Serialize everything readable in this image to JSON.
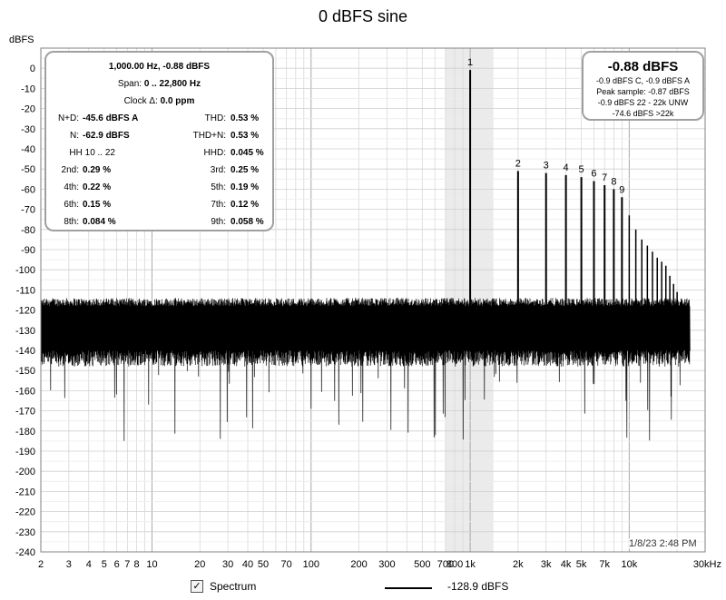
{
  "chart_data": {
    "type": "line",
    "title": "0 dBFS sine",
    "ylabel": "dBFS",
    "xlabel": "",
    "xscale": "log",
    "xlim": [
      2,
      30000
    ],
    "ylim": [
      -240,
      10
    ],
    "x_ticks": [
      {
        "v": 2,
        "label": "2"
      },
      {
        "v": 3,
        "label": "3"
      },
      {
        "v": 4,
        "label": "4"
      },
      {
        "v": 5,
        "label": "5"
      },
      {
        "v": 6,
        "label": "6"
      },
      {
        "v": 7,
        "label": "7"
      },
      {
        "v": 8,
        "label": "8"
      },
      {
        "v": 9,
        "label": ""
      },
      {
        "v": 10,
        "label": "10"
      },
      {
        "v": 20,
        "label": "20"
      },
      {
        "v": 30,
        "label": "30"
      },
      {
        "v": 40,
        "label": "40"
      },
      {
        "v": 50,
        "label": "50"
      },
      {
        "v": 70,
        "label": "70"
      },
      {
        "v": 100,
        "label": "100"
      },
      {
        "v": 200,
        "label": "200"
      },
      {
        "v": 300,
        "label": "300"
      },
      {
        "v": 500,
        "label": "500"
      },
      {
        "v": 700,
        "label": "700"
      },
      {
        "v": 800,
        "label": "800"
      },
      {
        "v": 1000,
        "label": "1k"
      },
      {
        "v": 2000,
        "label": "2k"
      },
      {
        "v": 3000,
        "label": "3k"
      },
      {
        "v": 4000,
        "label": "4k"
      },
      {
        "v": 5000,
        "label": "5k"
      },
      {
        "v": 7000,
        "label": "7k"
      },
      {
        "v": 10000,
        "label": "10k"
      },
      {
        "v": 30000,
        "label": "30kHz"
      }
    ],
    "y_ticks": [
      0,
      -10,
      -20,
      -30,
      -40,
      -50,
      -60,
      -70,
      -80,
      -90,
      -100,
      -110,
      -120,
      -130,
      -140,
      -150,
      -160,
      -170,
      -180,
      -190,
      -200,
      -210,
      -220,
      -230,
      -240
    ],
    "highlight_band": [
      700,
      1400
    ],
    "noise_floor": {
      "low": -140,
      "high": -118,
      "freq_start": 2,
      "freq_end": 24000
    },
    "harmonics": [
      {
        "label": "1",
        "freq": 1000,
        "level": -0.88
      },
      {
        "label": "2",
        "freq": 2000,
        "level": -51
      },
      {
        "label": "3",
        "freq": 3000,
        "level": -52
      },
      {
        "label": "4",
        "freq": 4000,
        "level": -53
      },
      {
        "label": "5",
        "freq": 5000,
        "level": -54
      },
      {
        "label": "6",
        "freq": 6000,
        "level": -56
      },
      {
        "label": "7",
        "freq": 7000,
        "level": -58
      },
      {
        "label": "8",
        "freq": 8000,
        "level": -60
      },
      {
        "label": "9",
        "freq": 9000,
        "level": -64
      }
    ],
    "extra_harmonics": [
      {
        "freq": 10000,
        "level": -73
      },
      {
        "freq": 11000,
        "level": -80
      },
      {
        "freq": 12000,
        "level": -85
      },
      {
        "freq": 13000,
        "level": -88
      },
      {
        "freq": 14000,
        "level": -91
      },
      {
        "freq": 15000,
        "level": -94
      },
      {
        "freq": 16000,
        "level": -96
      },
      {
        "freq": 17000,
        "level": -98
      },
      {
        "freq": 18000,
        "level": -103
      },
      {
        "freq": 19000,
        "level": -107
      },
      {
        "freq": 20000,
        "level": -111
      }
    ]
  },
  "stats": {
    "header": "1,000.00 Hz, -0.88 dBFS",
    "span_label": "Span:",
    "span_value": "0 .. 22,800 Hz",
    "clock_label": "Clock Δ:",
    "clock_value": "0.0 ppm",
    "nd_label": "N+D:",
    "nd_value": "-45.6 dBFS A",
    "thd_label": "THD:",
    "thd_value": "0.53 %",
    "n_label": "N:",
    "n_value": "-62.9 dBFS",
    "thdn_label": "THD+N:",
    "thdn_value": "0.53 %",
    "hh_label": "HH 10 .. 22",
    "hhd_label": "HHD:",
    "hhd_value": "0.045 %",
    "h2_label": "2nd:",
    "h2_value": "0.29 %",
    "h3_label": "3rd:",
    "h3_value": "0.25 %",
    "h4_label": "4th:",
    "h4_value": "0.22 %",
    "h5_label": "5th:",
    "h5_value": "0.19 %",
    "h6_label": "6th:",
    "h6_value": "0.15 %",
    "h7_label": "7th:",
    "h7_value": "0.12 %",
    "h8_label": "8th:",
    "h8_value": "0.084 %",
    "h9_label": "9th:",
    "h9_value": "0.058 %"
  },
  "peak": {
    "main": "-0.88 dBFS",
    "line1": "-0.9 dBFS C, -0.9 dBFS A",
    "line2": "Peak sample: -0.87 dBFS",
    "line3": "-0.9 dBFS 22 - 22k UNW",
    "line4": "-74.6 dBFS >22k"
  },
  "timestamp": "1/8/23 2:48 PM",
  "legend": {
    "checkbox_mark": "✓",
    "spectrum_label": "Spectrum",
    "cursor_value": "-128.9 dBFS"
  },
  "colors": {
    "trace": "#000000",
    "grid": "#d8d8d8",
    "band": "#ebebeb"
  }
}
